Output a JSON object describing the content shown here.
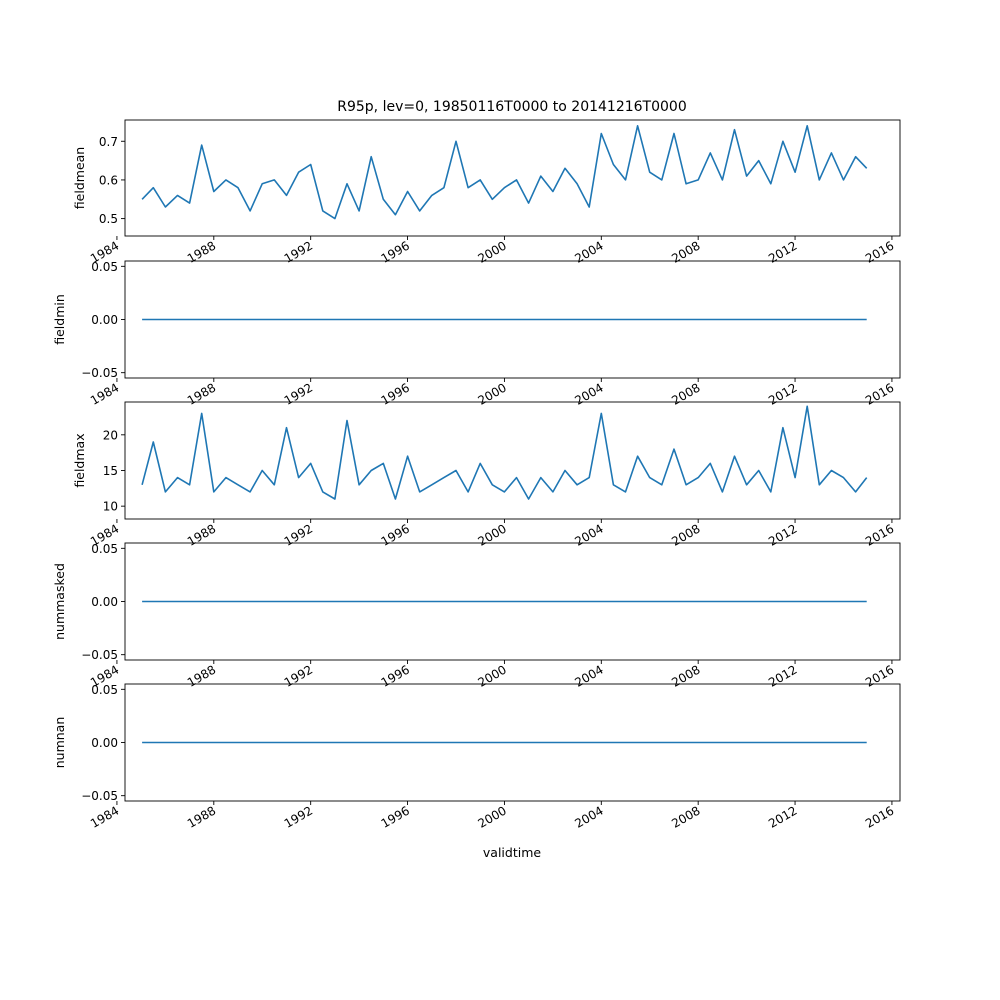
{
  "title": "R95p, lev=0, 19850116T0000 to 20141216T0000",
  "xlabel": "validtime",
  "line_color": "#1f77b4",
  "x_tick_labels": [
    "1984",
    "1988",
    "1992",
    "1996",
    "2000",
    "2004",
    "2008",
    "2012",
    "2016"
  ],
  "chart_data": [
    {
      "type": "line",
      "ylabel": "fieldmean",
      "xlim": [
        "1984-05",
        "2016-05"
      ],
      "ylim": [
        0.455,
        0.755
      ],
      "yticks": [
        0.5,
        0.6,
        0.7
      ],
      "ytick_labels": [
        "0.5",
        "0.6",
        "0.7"
      ],
      "x": [
        "1985-01-16",
        "1985-07-01",
        "1986-01-01",
        "1986-07-01",
        "1987-01-01",
        "1987-07-01",
        "1988-01-01",
        "1988-07-01",
        "1989-01-01",
        "1989-07-01",
        "1990-01-01",
        "1990-07-01",
        "1991-01-01",
        "1991-07-01",
        "1992-01-01",
        "1992-07-01",
        "1993-01-01",
        "1993-07-01",
        "1994-01-01",
        "1994-07-01",
        "1995-01-01",
        "1995-07-01",
        "1996-01-01",
        "1996-07-01",
        "1997-01-01",
        "1997-07-01",
        "1998-01-01",
        "1998-07-01",
        "1999-01-01",
        "1999-07-01",
        "2000-01-01",
        "2000-07-01",
        "2001-01-01",
        "2001-07-01",
        "2002-01-01",
        "2002-07-01",
        "2003-01-01",
        "2003-07-01",
        "2004-01-01",
        "2004-07-01",
        "2005-01-01",
        "2005-07-01",
        "2006-01-01",
        "2006-07-01",
        "2007-01-01",
        "2007-07-01",
        "2008-01-01",
        "2008-07-01",
        "2009-01-01",
        "2009-07-01",
        "2010-01-01",
        "2010-07-01",
        "2011-01-01",
        "2011-07-01",
        "2012-01-01",
        "2012-07-01",
        "2013-01-01",
        "2013-07-01",
        "2014-01-01",
        "2014-07-01",
        "2014-12-16"
      ],
      "y": [
        0.55,
        0.58,
        0.53,
        0.56,
        0.54,
        0.69,
        0.57,
        0.6,
        0.58,
        0.52,
        0.59,
        0.6,
        0.56,
        0.62,
        0.64,
        0.52,
        0.5,
        0.59,
        0.52,
        0.66,
        0.55,
        0.51,
        0.57,
        0.52,
        0.56,
        0.58,
        0.7,
        0.58,
        0.6,
        0.55,
        0.58,
        0.6,
        0.54,
        0.61,
        0.57,
        0.63,
        0.59,
        0.53,
        0.72,
        0.64,
        0.6,
        0.74,
        0.62,
        0.6,
        0.72,
        0.59,
        0.6,
        0.67,
        0.6,
        0.73,
        0.61,
        0.65,
        0.59,
        0.7,
        0.62,
        0.74,
        0.6,
        0.67,
        0.6,
        0.66,
        0.63
      ]
    },
    {
      "type": "line",
      "ylabel": "fieldmin",
      "xlim": [
        "1984-05",
        "2016-05"
      ],
      "ylim": [
        -0.055,
        0.055
      ],
      "yticks": [
        -0.05,
        0.0,
        0.05
      ],
      "ytick_labels": [
        "−0.05",
        "0.00",
        "0.05"
      ],
      "x": [
        "1985-01-16",
        "2014-12-16"
      ],
      "y": [
        0,
        0
      ]
    },
    {
      "type": "line",
      "ylabel": "fieldmax",
      "xlim": [
        "1984-05",
        "2016-05"
      ],
      "ylim": [
        8.2,
        24.6
      ],
      "yticks": [
        10,
        15,
        20
      ],
      "ytick_labels": [
        "10",
        "15",
        "20"
      ],
      "x": [
        "1985-01-16",
        "1985-07-01",
        "1986-01-01",
        "1986-07-01",
        "1987-01-01",
        "1987-07-01",
        "1988-01-01",
        "1988-07-01",
        "1989-01-01",
        "1989-07-01",
        "1990-01-01",
        "1990-07-01",
        "1991-01-01",
        "1991-07-01",
        "1992-01-01",
        "1992-07-01",
        "1993-01-01",
        "1993-07-01",
        "1994-01-01",
        "1994-07-01",
        "1995-01-01",
        "1995-07-01",
        "1996-01-01",
        "1996-07-01",
        "1997-01-01",
        "1997-07-01",
        "1998-01-01",
        "1998-07-01",
        "1999-01-01",
        "1999-07-01",
        "2000-01-01",
        "2000-07-01",
        "2001-01-01",
        "2001-07-01",
        "2002-01-01",
        "2002-07-01",
        "2003-01-01",
        "2003-07-01",
        "2004-01-01",
        "2004-07-01",
        "2005-01-01",
        "2005-07-01",
        "2006-01-01",
        "2006-07-01",
        "2007-01-01",
        "2007-07-01",
        "2008-01-01",
        "2008-07-01",
        "2009-01-01",
        "2009-07-01",
        "2010-01-01",
        "2010-07-01",
        "2011-01-01",
        "2011-07-01",
        "2012-01-01",
        "2012-07-01",
        "2013-01-01",
        "2013-07-01",
        "2014-01-01",
        "2014-07-01",
        "2014-12-16"
      ],
      "y": [
        13,
        19,
        12,
        14,
        13,
        23,
        12,
        14,
        13,
        12,
        15,
        13,
        21,
        14,
        16,
        12,
        11,
        22,
        13,
        15,
        16,
        11,
        17,
        12,
        13,
        14,
        15,
        12,
        16,
        13,
        12,
        14,
        11,
        14,
        12,
        15,
        13,
        14,
        23,
        13,
        12,
        17,
        14,
        13,
        18,
        13,
        14,
        16,
        12,
        17,
        13,
        15,
        12,
        21,
        14,
        24,
        13,
        15,
        14,
        12,
        14
      ]
    },
    {
      "type": "line",
      "ylabel": "nummasked",
      "xlim": [
        "1984-05",
        "2016-05"
      ],
      "ylim": [
        -0.055,
        0.055
      ],
      "yticks": [
        -0.05,
        0.0,
        0.05
      ],
      "ytick_labels": [
        "−0.05",
        "0.00",
        "0.05"
      ],
      "x": [
        "1985-01-16",
        "2014-12-16"
      ],
      "y": [
        0,
        0
      ]
    },
    {
      "type": "line",
      "ylabel": "numnan",
      "xlim": [
        "1984-05",
        "2016-05"
      ],
      "ylim": [
        -0.055,
        0.055
      ],
      "yticks": [
        -0.05,
        0.0,
        0.05
      ],
      "ytick_labels": [
        "−0.05",
        "0.00",
        "0.05"
      ],
      "x": [
        "1985-01-16",
        "2014-12-16"
      ],
      "y": [
        0,
        0
      ]
    }
  ]
}
